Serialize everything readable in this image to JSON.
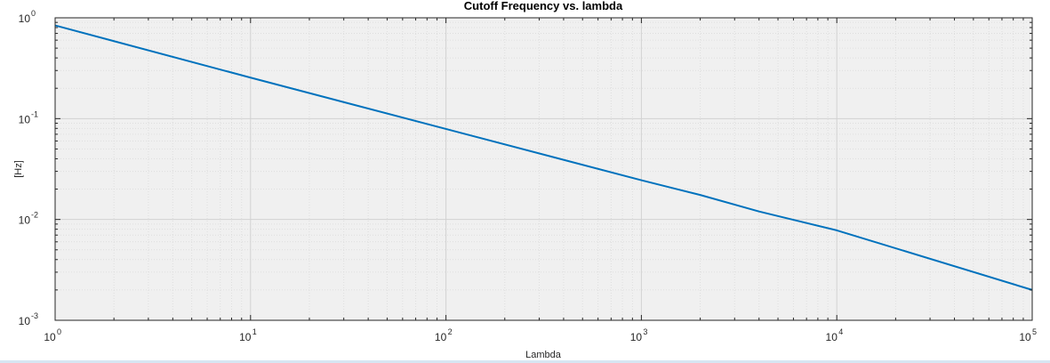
{
  "chart_data": {
    "type": "line",
    "title": "Cutoff Frequency vs. lambda",
    "xlabel": "Lambda",
    "ylabel": "[Hz]",
    "xscale": "log",
    "yscale": "log",
    "xlim": [
      1,
      100000
    ],
    "ylim": [
      0.001,
      1
    ],
    "grid": true,
    "minor_grid": true,
    "xticks": [
      {
        "base": "10",
        "exp": "0"
      },
      {
        "base": "10",
        "exp": "1"
      },
      {
        "base": "10",
        "exp": "2"
      },
      {
        "base": "10",
        "exp": "3"
      },
      {
        "base": "10",
        "exp": "4"
      },
      {
        "base": "10",
        "exp": "5"
      }
    ],
    "yticks": [
      {
        "base": "10",
        "exp": "-3"
      },
      {
        "base": "10",
        "exp": "-2"
      },
      {
        "base": "10",
        "exp": "-1"
      },
      {
        "base": "10",
        "exp": "0"
      }
    ],
    "series": [
      {
        "color": "#0072bd",
        "x": [
          1,
          10,
          100,
          1000,
          2000,
          4000,
          10000,
          100000
        ],
        "y": [
          0.84,
          0.255,
          0.079,
          0.0245,
          0.0175,
          0.012,
          0.0078,
          0.002
        ]
      }
    ]
  },
  "colors": {
    "axes_bg": "#f0f0f0",
    "grid_major": "#d2d2d2",
    "grid_minor": "#dedede",
    "axis": "#262626"
  }
}
